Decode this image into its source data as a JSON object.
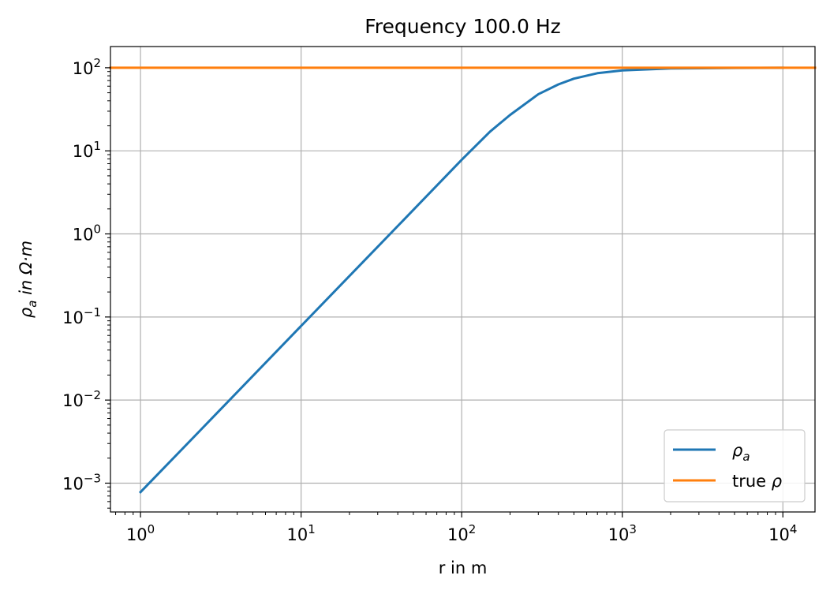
{
  "chart_data": {
    "type": "line",
    "title": "Frequency 100.0 Hz",
    "xlabel": "r in m",
    "ylabel": "ρa in Ω·m",
    "xscale": "log",
    "yscale": "log",
    "xlim": [
      0.65,
      15850
    ],
    "ylim": [
      0.00045,
      180
    ],
    "grid": true,
    "legend_placement": "lower-right",
    "x_ticks": [
      {
        "base": "10",
        "exp": "0",
        "value": 1
      },
      {
        "base": "10",
        "exp": "1",
        "value": 10
      },
      {
        "base": "10",
        "exp": "2",
        "value": 100
      },
      {
        "base": "10",
        "exp": "3",
        "value": 1000
      },
      {
        "base": "10",
        "exp": "4",
        "value": 10000
      }
    ],
    "y_ticks": [
      {
        "base": "10",
        "exp": "−3",
        "value": 0.001
      },
      {
        "base": "10",
        "exp": "−2",
        "value": 0.01
      },
      {
        "base": "10",
        "exp": "−1",
        "value": 0.1
      },
      {
        "base": "10",
        "exp": "0",
        "value": 1
      },
      {
        "base": "10",
        "exp": "1",
        "value": 10
      },
      {
        "base": "10",
        "exp": "2",
        "value": 100
      }
    ],
    "series": [
      {
        "name": "ρa",
        "color": "#1f77b4",
        "x": [
          1,
          3,
          10,
          30,
          100,
          150,
          200,
          300,
          400,
          500,
          700,
          1000,
          2000,
          5000,
          10000
        ],
        "y": [
          0.00078,
          0.007,
          0.078,
          0.7,
          7.8,
          17,
          27,
          48,
          63,
          74,
          86,
          93,
          98,
          99.6,
          100
        ]
      },
      {
        "name": "true ρ",
        "color": "#ff7f0e",
        "x": [
          0.65,
          15850
        ],
        "y": [
          100,
          100
        ]
      }
    ]
  }
}
